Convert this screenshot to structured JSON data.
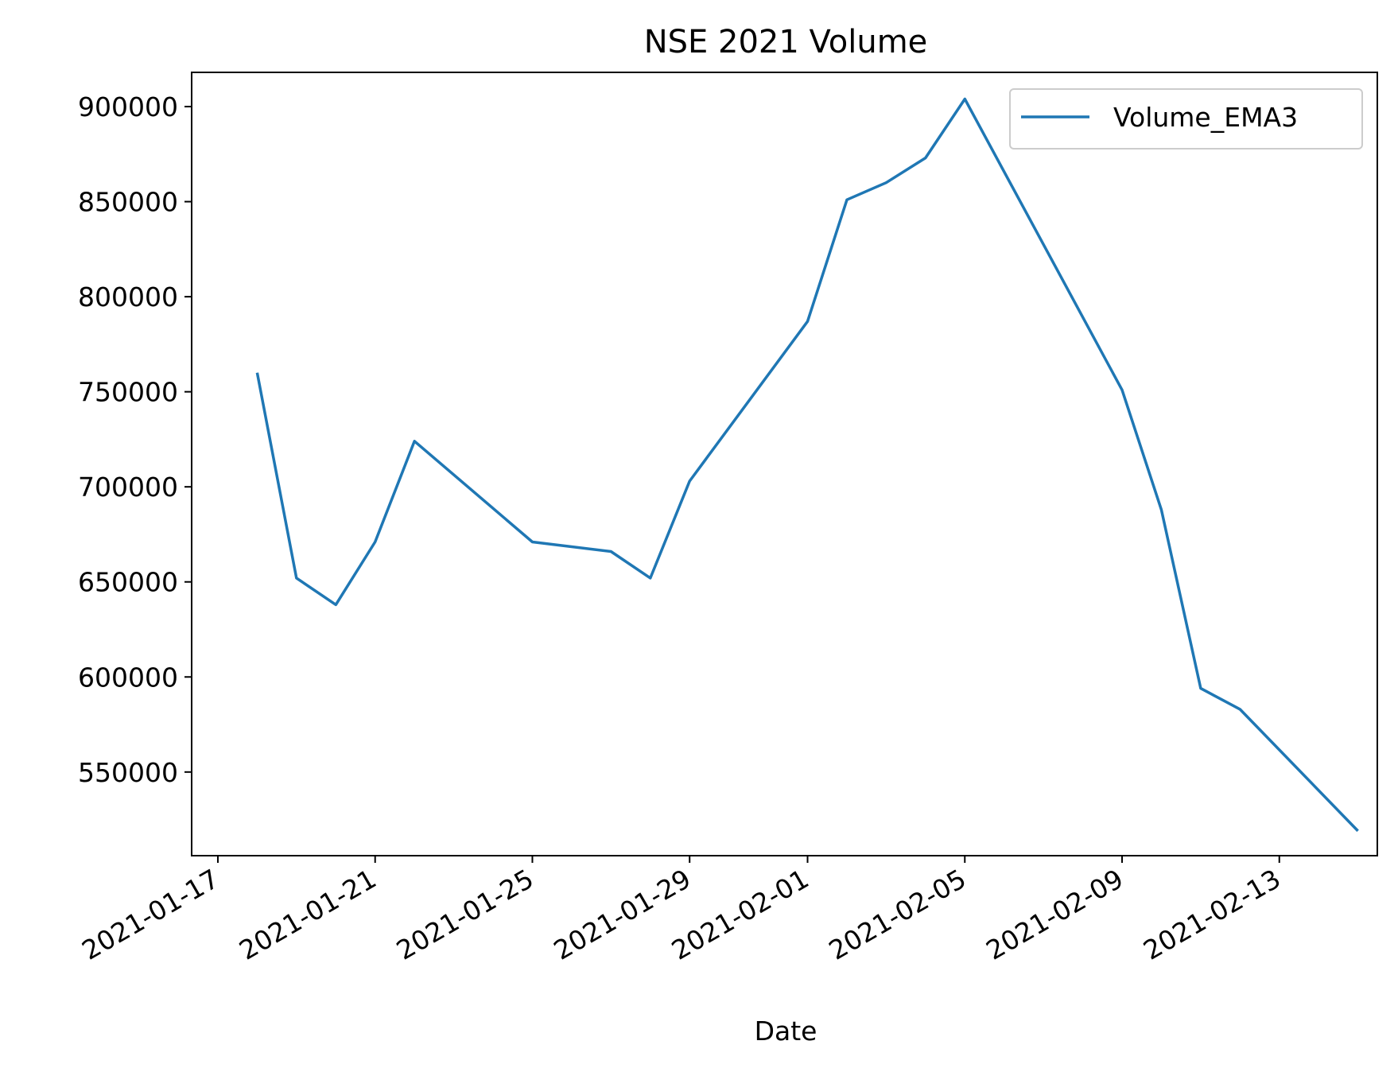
{
  "chart_data": {
    "type": "line",
    "title": "NSE 2021 Volume",
    "xlabel": "Date",
    "ylabel": "",
    "x": [
      "2021-01-18",
      "2021-01-19",
      "2021-01-20",
      "2021-01-21",
      "2021-01-22",
      "2021-01-25",
      "2021-01-27",
      "2021-01-28",
      "2021-01-29",
      "2021-02-01",
      "2021-02-02",
      "2021-02-03",
      "2021-02-04",
      "2021-02-05",
      "2021-02-09",
      "2021-02-10",
      "2021-02-11",
      "2021-02-12",
      "2021-02-15"
    ],
    "series": [
      {
        "name": "Volume_EMA3",
        "color": "#1f77b4",
        "values": [
          760000,
          652000,
          638000,
          671000,
          724000,
          671000,
          666000,
          652000,
          703000,
          787000,
          851000,
          860000,
          873000,
          904000,
          751000,
          688000,
          594000,
          583000,
          519000
        ]
      }
    ],
    "xticks": [
      "2021-01-17",
      "2021-01-21",
      "2021-01-25",
      "2021-01-29",
      "2021-02-01",
      "2021-02-05",
      "2021-02-09",
      "2021-02-13"
    ],
    "yticks": [
      550000,
      600000,
      650000,
      700000,
      750000,
      800000,
      850000,
      900000
    ],
    "xlim": [
      "2021-01-17",
      "2021-02-15"
    ],
    "ylim": [
      506000,
      918000
    ],
    "grid": false,
    "legend": "top-right"
  }
}
